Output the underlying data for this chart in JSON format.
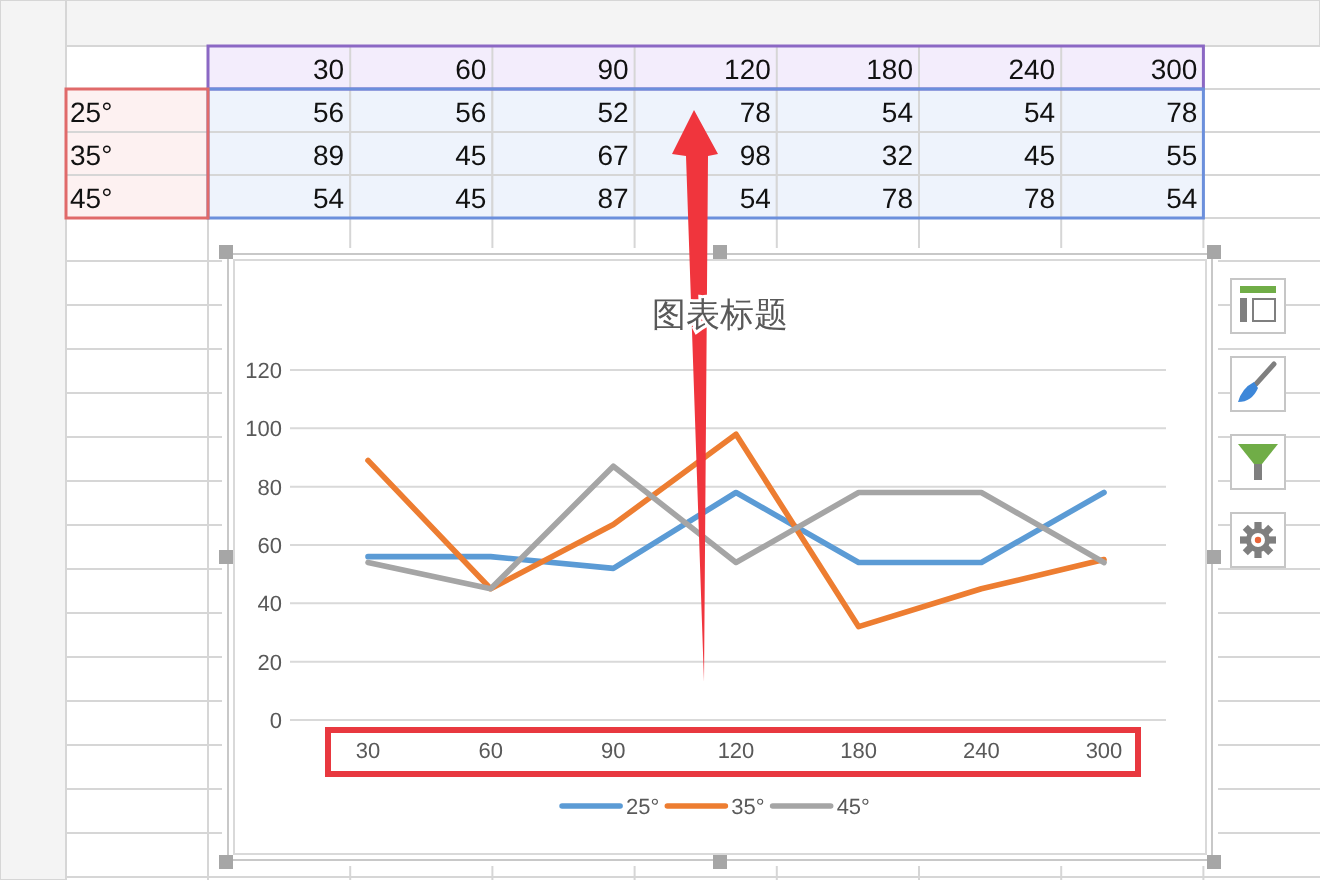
{
  "chart_data": [
    {
      "type": "heatmap",
      "categories": [
        "30",
        "60",
        "90",
        "120",
        "180",
        "240",
        "300"
      ],
      "y_categories": [
        "25°",
        "35°",
        "45°"
      ],
      "cells": [
        [
          56,
          56,
          52,
          78,
          54,
          54,
          78
        ],
        [
          89,
          45,
          67,
          98,
          32,
          45,
          55
        ],
        [
          54,
          45,
          87,
          54,
          78,
          78,
          54
        ]
      ],
      "data_labels": true
    },
    {
      "type": "line",
      "title": "图表标题",
      "categories": [
        "30",
        "60",
        "90",
        "120",
        "180",
        "240",
        "300"
      ],
      "series": [
        {
          "name": "25°",
          "color": "#5b9bd5",
          "values": [
            56,
            56,
            52,
            78,
            54,
            54,
            78
          ]
        },
        {
          "name": "35°",
          "color": "#ed7d31",
          "values": [
            89,
            45,
            67,
            98,
            32,
            45,
            55
          ]
        },
        {
          "name": "45°",
          "color": "#a5a5a5",
          "values": [
            54,
            45,
            87,
            54,
            78,
            78,
            54
          ]
        }
      ],
      "ylim": [
        0,
        120
      ],
      "yticks": [
        0,
        20,
        40,
        60,
        80,
        100,
        120
      ],
      "grid": "y",
      "legend": "bottom"
    }
  ]
}
